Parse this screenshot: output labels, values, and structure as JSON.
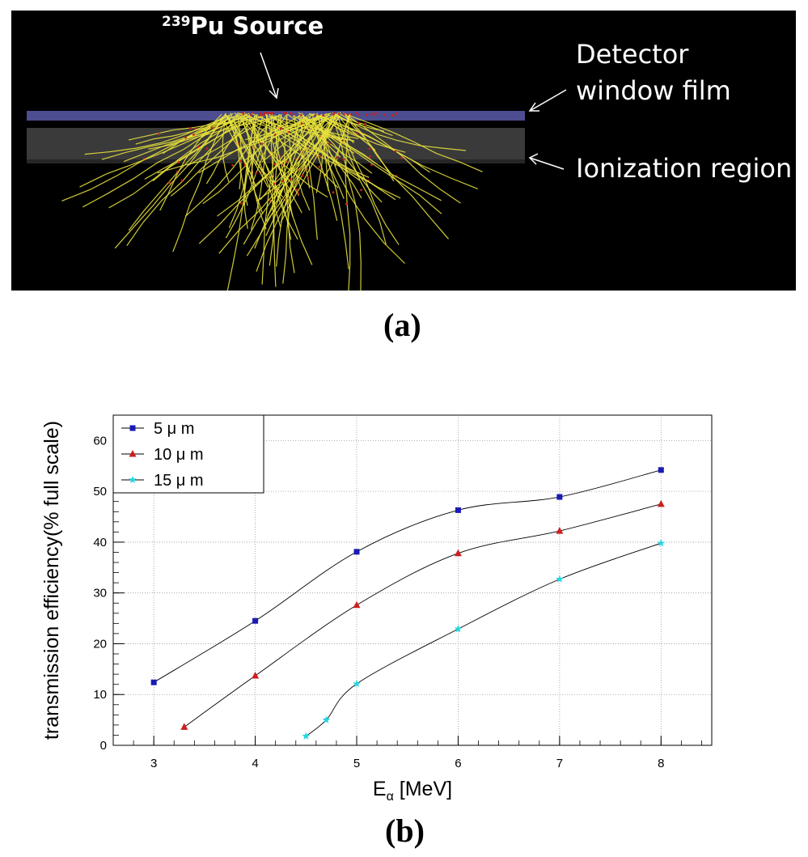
{
  "panel_a": {
    "source_label_sup": "239",
    "source_label": "Pu Source",
    "detector_label": "Detector window film",
    "ionization_label": "Ionization region",
    "caption": "(a)",
    "colors": {
      "background": "#000000",
      "window_film": "#4a4a8c",
      "ionization": "#3a3a3a",
      "tracks": "#e6e03c",
      "track_points": "#cc1f1f"
    }
  },
  "panel_b_caption": "(b)",
  "chart_data": {
    "type": "line",
    "xlabel_main": "E",
    "xlabel_sub": "α",
    "xlabel_rest": " [MeV]",
    "ylabel": "transmission efficiency(% full scale)",
    "xlim": [
      2.6,
      8.5
    ],
    "ylim": [
      0,
      65
    ],
    "x_ticks": [
      3,
      4,
      5,
      6,
      7,
      8
    ],
    "y_ticks": [
      0,
      10,
      20,
      30,
      40,
      50,
      60
    ],
    "grid": true,
    "legend_position": "top-left",
    "series": [
      {
        "name": "5 μ m",
        "color": "#1a1ab4",
        "marker": "square",
        "x": [
          3,
          4,
          5,
          6,
          7,
          8
        ],
        "y": [
          12.4,
          24.5,
          38.1,
          46.3,
          48.9,
          54.2
        ]
      },
      {
        "name": "10 μ m",
        "color": "#cc1f1f",
        "marker": "triangle",
        "x": [
          3.3,
          4,
          5,
          6,
          7,
          8
        ],
        "y": [
          3.6,
          13.7,
          27.6,
          37.8,
          42.2,
          47.5
        ]
      },
      {
        "name": "15 μ m",
        "color": "#22d8e0",
        "marker": "star",
        "x": [
          4.5,
          4.7,
          5,
          6,
          7,
          8
        ],
        "y": [
          1.8,
          5.0,
          12.1,
          22.9,
          32.7,
          39.8
        ]
      }
    ]
  }
}
